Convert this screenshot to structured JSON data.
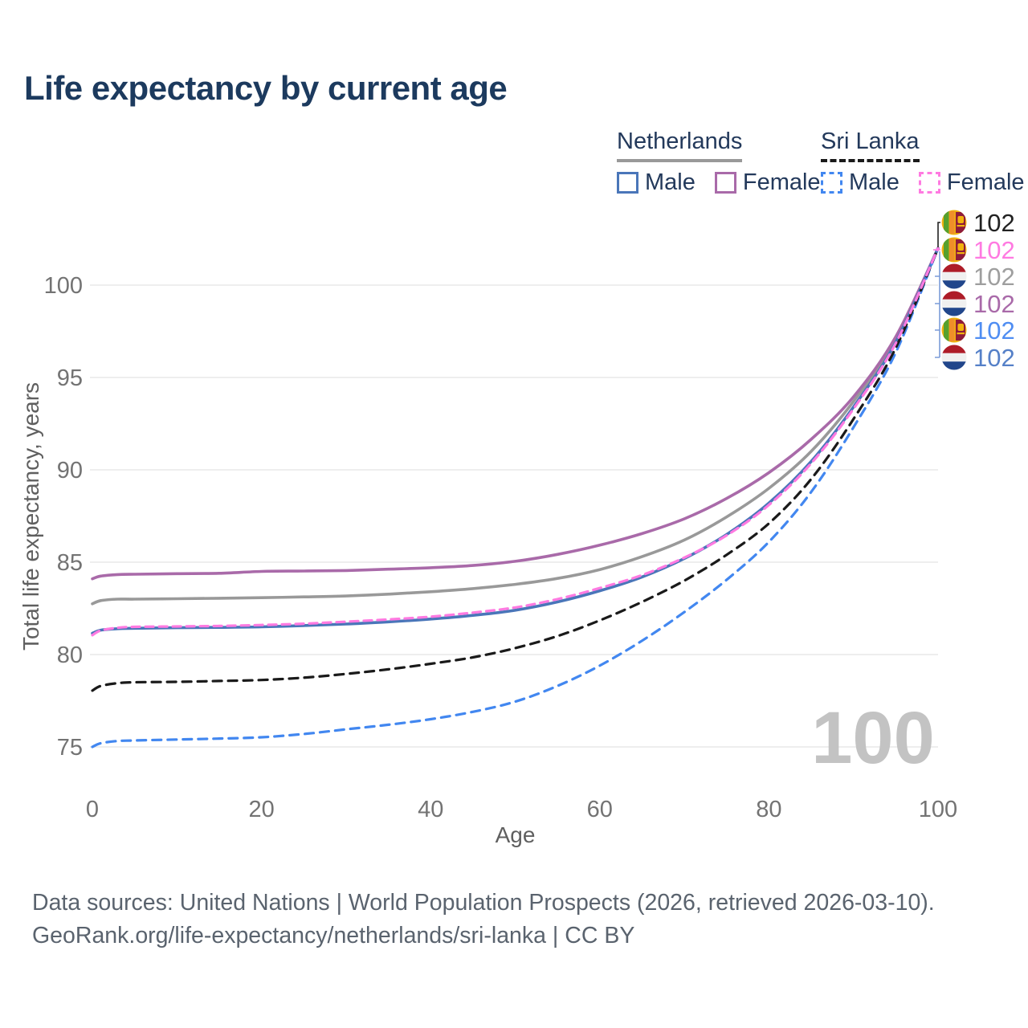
{
  "title": "Life expectancy by current age",
  "legend": {
    "groups": [
      {
        "label": "Netherlands",
        "line_style": "solid",
        "underline_color": "#999999",
        "items": [
          {
            "label": "Male",
            "color": "#4a76b9",
            "dash": false
          },
          {
            "label": "Female",
            "color": "#a96aa9",
            "dash": false
          }
        ]
      },
      {
        "label": "Sri Lanka",
        "line_style": "dashed",
        "underline_color": "#1a1a1a",
        "items": [
          {
            "label": "Male",
            "color": "#4287f0",
            "dash": true
          },
          {
            "label": "Female",
            "color": "#ff7ae1",
            "dash": true
          }
        ]
      }
    ]
  },
  "footer": {
    "line1": "Data sources: United Nations | World Population Prospects (2026, retrieved 2026-03-10).",
    "line2": "GeoRank.org/life-expectancy/netherlands/sri-lanka | CC BY"
  },
  "chart_data": {
    "type": "line",
    "title": "Life expectancy by current age",
    "xlabel": "Age",
    "ylabel": "Total life expectancy, years",
    "xlim": [
      0,
      100
    ],
    "ylim": [
      73,
      103
    ],
    "x_ticks": [
      0,
      20,
      40,
      60,
      80,
      100
    ],
    "y_ticks": [
      75,
      80,
      85,
      90,
      95,
      100
    ],
    "grid": "horizontal",
    "legend_position": "top-right",
    "watermark": "100",
    "ages": [
      0,
      1,
      3,
      5,
      10,
      15,
      20,
      25,
      30,
      35,
      40,
      45,
      50,
      55,
      60,
      65,
      70,
      75,
      80,
      85,
      90,
      95,
      100
    ],
    "series": [
      {
        "name": "Netherlands Female",
        "country": "Netherlands",
        "sex": "Female",
        "color": "#a96aa9",
        "dash": null,
        "values": [
          84.1,
          84.25,
          84.33,
          84.35,
          84.38,
          84.4,
          84.5,
          84.52,
          84.55,
          84.62,
          84.7,
          84.82,
          85.05,
          85.42,
          85.92,
          86.55,
          87.35,
          88.45,
          89.85,
          91.65,
          93.95,
          97.2,
          102
        ]
      },
      {
        "name": "Netherlands",
        "country": "Netherlands",
        "sex": "All",
        "color": "#999999",
        "dash": null,
        "values": [
          82.75,
          82.92,
          83.0,
          83.0,
          83.02,
          83.05,
          83.08,
          83.12,
          83.17,
          83.27,
          83.4,
          83.57,
          83.8,
          84.12,
          84.6,
          85.3,
          86.2,
          87.45,
          89.0,
          91.0,
          93.7,
          97.05,
          102
        ]
      },
      {
        "name": "Netherlands Male",
        "country": "Netherlands",
        "sex": "Male",
        "color": "#4a76b9",
        "dash": null,
        "values": [
          81.15,
          81.32,
          81.4,
          81.42,
          81.45,
          81.47,
          81.5,
          81.57,
          81.65,
          81.77,
          81.92,
          82.12,
          82.4,
          82.85,
          83.45,
          84.2,
          85.2,
          86.5,
          88.2,
          90.45,
          93.4,
          96.9,
          102
        ]
      },
      {
        "name": "Sri Lanka Female",
        "country": "Sri Lanka",
        "sex": "Female",
        "color": "#ff7ae1",
        "dash": "10 7",
        "values": [
          81.05,
          81.3,
          81.45,
          81.5,
          81.52,
          81.55,
          81.6,
          81.67,
          81.78,
          81.9,
          82.05,
          82.27,
          82.55,
          83.0,
          83.6,
          84.3,
          85.25,
          86.45,
          88.1,
          90.35,
          93.3,
          96.85,
          102
        ]
      },
      {
        "name": "Sri Lanka",
        "country": "Sri Lanka",
        "sex": "All",
        "color": "#1a1a1a",
        "dash": "11 8",
        "values": [
          78.05,
          78.3,
          78.45,
          78.5,
          78.52,
          78.57,
          78.62,
          78.75,
          78.95,
          79.2,
          79.5,
          79.85,
          80.35,
          81.0,
          81.85,
          82.85,
          84.0,
          85.4,
          87.1,
          89.5,
          92.75,
          96.6,
          102
        ]
      },
      {
        "name": "Sri Lanka Male",
        "country": "Sri Lanka",
        "sex": "Male",
        "color": "#4287f0",
        "dash": "11 8",
        "values": [
          75.0,
          75.2,
          75.32,
          75.35,
          75.4,
          75.45,
          75.52,
          75.7,
          75.95,
          76.2,
          76.5,
          76.9,
          77.45,
          78.3,
          79.4,
          80.75,
          82.3,
          84.05,
          86.1,
          88.8,
          92.3,
          96.35,
          102
        ]
      }
    ],
    "end_labels": [
      {
        "series": "Sri Lanka",
        "flag": "sri-lanka",
        "value": "102",
        "color": "#222222"
      },
      {
        "series": "Sri Lanka Female",
        "flag": "sri-lanka",
        "value": "102",
        "color": "#ff7ae1"
      },
      {
        "series": "Netherlands",
        "flag": "netherlands",
        "value": "102",
        "color": "#9e9e9e"
      },
      {
        "series": "Netherlands Female",
        "flag": "netherlands",
        "value": "102",
        "color": "#a96aa9"
      },
      {
        "series": "Sri Lanka Male",
        "flag": "sri-lanka",
        "value": "102",
        "color": "#4f8df2"
      },
      {
        "series": "Netherlands Male",
        "flag": "netherlands",
        "value": "102",
        "color": "#5580c8"
      }
    ]
  }
}
